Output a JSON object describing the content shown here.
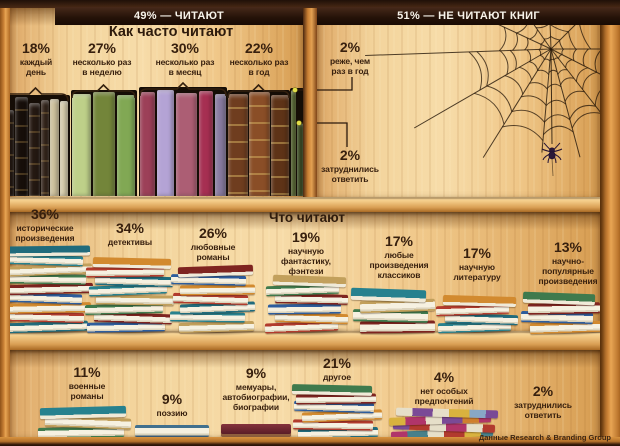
{
  "title_bars": {
    "readers": "49% — ЧИТАЮТ",
    "non_readers": "51% — НЕ ЧИТАЮТ КНИГ"
  },
  "sections": {
    "frequency": {
      "heading": "Как часто читают",
      "items": [
        {
          "pct": "18%",
          "label": "каждый день",
          "lines": [
            "каждый",
            "день"
          ]
        },
        {
          "pct": "27%",
          "label": "несколько раз в неделю",
          "lines": [
            "несколько раз",
            "в неделю"
          ]
        },
        {
          "pct": "30%",
          "label": "несколько раз в месяц",
          "lines": [
            "несколько раз",
            "в месяц"
          ]
        },
        {
          "pct": "22%",
          "label": "несколько раз в год",
          "lines": [
            "несколько раз",
            "в год"
          ]
        },
        {
          "pct": "2%",
          "label": "реже, чем раз в год",
          "lines": [
            "реже, чем",
            "раз в год"
          ]
        },
        {
          "pct": "2%",
          "label": "затруднились ответить",
          "lines": [
            "затруднились",
            "ответить"
          ]
        }
      ]
    },
    "genres": {
      "heading": "Что читают",
      "items": [
        {
          "pct": "36%",
          "label": "исторические произведения",
          "lines": [
            "исторические",
            "произведения"
          ]
        },
        {
          "pct": "34%",
          "label": "детективы",
          "lines": [
            "детективы"
          ]
        },
        {
          "pct": "26%",
          "label": "любовные романы",
          "lines": [
            "любовные",
            "романы"
          ]
        },
        {
          "pct": "19%",
          "label": "научную фантастику, фэнтези",
          "lines": [
            "научную",
            "фантастику,",
            "фэнтези"
          ]
        },
        {
          "pct": "17%",
          "label": "любые произведения классиков",
          "lines": [
            "любые",
            "произведения",
            "классиков"
          ]
        },
        {
          "pct": "17%",
          "label": "научную литературу",
          "lines": [
            "научную",
            "литературу"
          ]
        },
        {
          "pct": "13%",
          "label": "научно-популярные произведения",
          "lines": [
            "научно-",
            "популярные",
            "произведения"
          ]
        },
        {
          "pct": "11%",
          "label": "военные романы",
          "lines": [
            "военные",
            "романы"
          ]
        },
        {
          "pct": "9%",
          "label": "поэзию",
          "lines": [
            "поэзию"
          ]
        },
        {
          "pct": "9%",
          "label": "мемуары, автобиографии, биографии",
          "lines": [
            "мемуары,",
            "автобиографии,",
            "биографии"
          ]
        },
        {
          "pct": "21%",
          "label": "другое",
          "lines": [
            "другое"
          ]
        },
        {
          "pct": "4%",
          "label": "нет особых предпочтений",
          "lines": [
            "нет особых",
            "предпочтений"
          ]
        },
        {
          "pct": "2%",
          "label": "затруднились ответить",
          "lines": [
            "затруднились",
            "ответить"
          ]
        }
      ]
    }
  },
  "source": "Данные Research & Branding Group",
  "colors": {
    "bar_bg": "#241208",
    "bar_text": "#f7f3ea",
    "ink": "#38200e",
    "wood_frame": "#c97f33",
    "wood_panel": "#f3d49c",
    "web": "#241608",
    "dot": "#e2df49"
  },
  "chart_data": [
    {
      "type": "bar",
      "title": "Читают ли книги",
      "categories": [
        "читают",
        "не читают книг"
      ],
      "values": [
        49,
        51
      ],
      "unit": "%"
    },
    {
      "type": "bar",
      "title": "Как часто читают",
      "categories": [
        "каждый день",
        "несколько раз в неделю",
        "несколько раз в месяц",
        "несколько раз в год",
        "реже, чем раз в год",
        "затруднились ответить"
      ],
      "values": [
        18,
        27,
        30,
        22,
        2,
        2
      ],
      "unit": "%"
    },
    {
      "type": "bar",
      "title": "Что читают",
      "categories": [
        "исторические произведения",
        "детективы",
        "любовные романы",
        "научную фантастику, фэнтези",
        "любые произведения классиков",
        "научную литературу",
        "научно-популярные произведения",
        "военные романы",
        "поэзию",
        "мемуары, автобиографии, биографии",
        "другое",
        "нет особых предпочтений",
        "затруднились ответить"
      ],
      "values": [
        36,
        34,
        26,
        19,
        17,
        17,
        13,
        11,
        9,
        9,
        21,
        4,
        2
      ],
      "unit": "%"
    }
  ]
}
